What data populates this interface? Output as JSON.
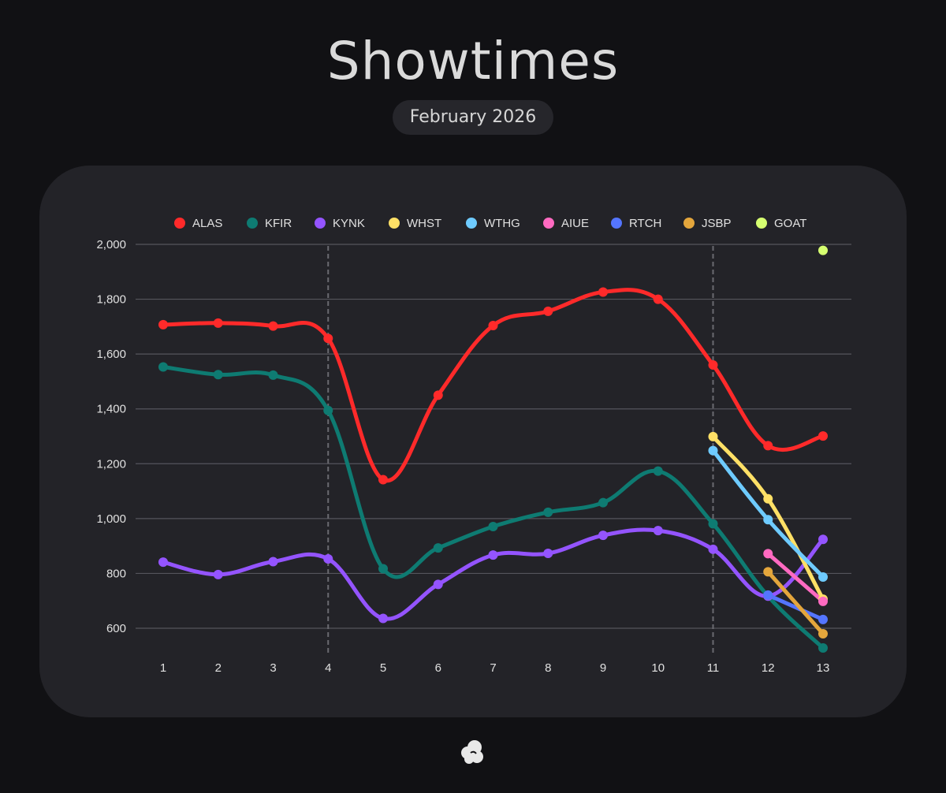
{
  "header": {
    "title": "Showtimes",
    "subtitle": "February 2026"
  },
  "colors": {
    "background": "#111114",
    "card": "#232328",
    "grid": "#55555c",
    "axis_text": "#e0e0e0"
  },
  "logo": {
    "icon": "cloud-logo-icon"
  },
  "chart_data": {
    "type": "line",
    "title": "Showtimes",
    "subtitle": "February 2026",
    "xlabel": "",
    "ylabel": "",
    "categories": [
      "1",
      "2",
      "3",
      "4",
      "5",
      "6",
      "7",
      "8",
      "9",
      "10",
      "11",
      "12",
      "13"
    ],
    "ylim": [
      540,
      2000
    ],
    "yticks": [
      600,
      800,
      1000,
      1200,
      1400,
      1600,
      1800,
      2000
    ],
    "ytick_labels": [
      "600",
      "800",
      "1,000",
      "1,200",
      "1,400",
      "1,600",
      "1,800",
      "2,000"
    ],
    "grid": true,
    "legend": "top",
    "vertical_markers": [
      "4",
      "11"
    ],
    "series": [
      {
        "name": "ALAS",
        "color": "#ff2a2a",
        "values": [
          1707,
          1713,
          1702,
          1657,
          1142,
          1450,
          1704,
          1756,
          1826,
          1800,
          1560,
          1266,
          1301
        ]
      },
      {
        "name": "KFIR",
        "color": "#0e7b72",
        "values": [
          1553,
          1525,
          1523,
          1394,
          817,
          893,
          971,
          1023,
          1058,
          1173,
          981,
          717,
          528
        ]
      },
      {
        "name": "KYNK",
        "color": "#9454ff",
        "values": [
          841,
          796,
          843,
          853,
          636,
          760,
          867,
          873,
          939,
          956,
          888,
          717,
          924
        ]
      },
      {
        "name": "WHST",
        "color": "#ffe066",
        "values": [
          null,
          null,
          null,
          null,
          null,
          null,
          null,
          null,
          null,
          null,
          1299,
          1072,
          706
        ]
      },
      {
        "name": "WTHG",
        "color": "#6ecbff",
        "values": [
          null,
          null,
          null,
          null,
          null,
          null,
          null,
          null,
          null,
          null,
          1248,
          996,
          787
        ]
      },
      {
        "name": "AIUE",
        "color": "#ff6ac1",
        "values": [
          null,
          null,
          null,
          null,
          null,
          null,
          null,
          null,
          null,
          null,
          null,
          872,
          698
        ]
      },
      {
        "name": "RTCH",
        "color": "#5475ff",
        "values": [
          null,
          null,
          null,
          null,
          null,
          null,
          null,
          null,
          null,
          null,
          null,
          721,
          632
        ]
      },
      {
        "name": "JSBP",
        "color": "#e4a63c",
        "values": [
          null,
          null,
          null,
          null,
          null,
          null,
          null,
          null,
          null,
          null,
          null,
          806,
          580
        ]
      },
      {
        "name": "GOAT",
        "color": "#d6ff70",
        "values": [
          null,
          null,
          null,
          null,
          null,
          null,
          null,
          null,
          null,
          null,
          null,
          null,
          1978
        ]
      }
    ]
  }
}
